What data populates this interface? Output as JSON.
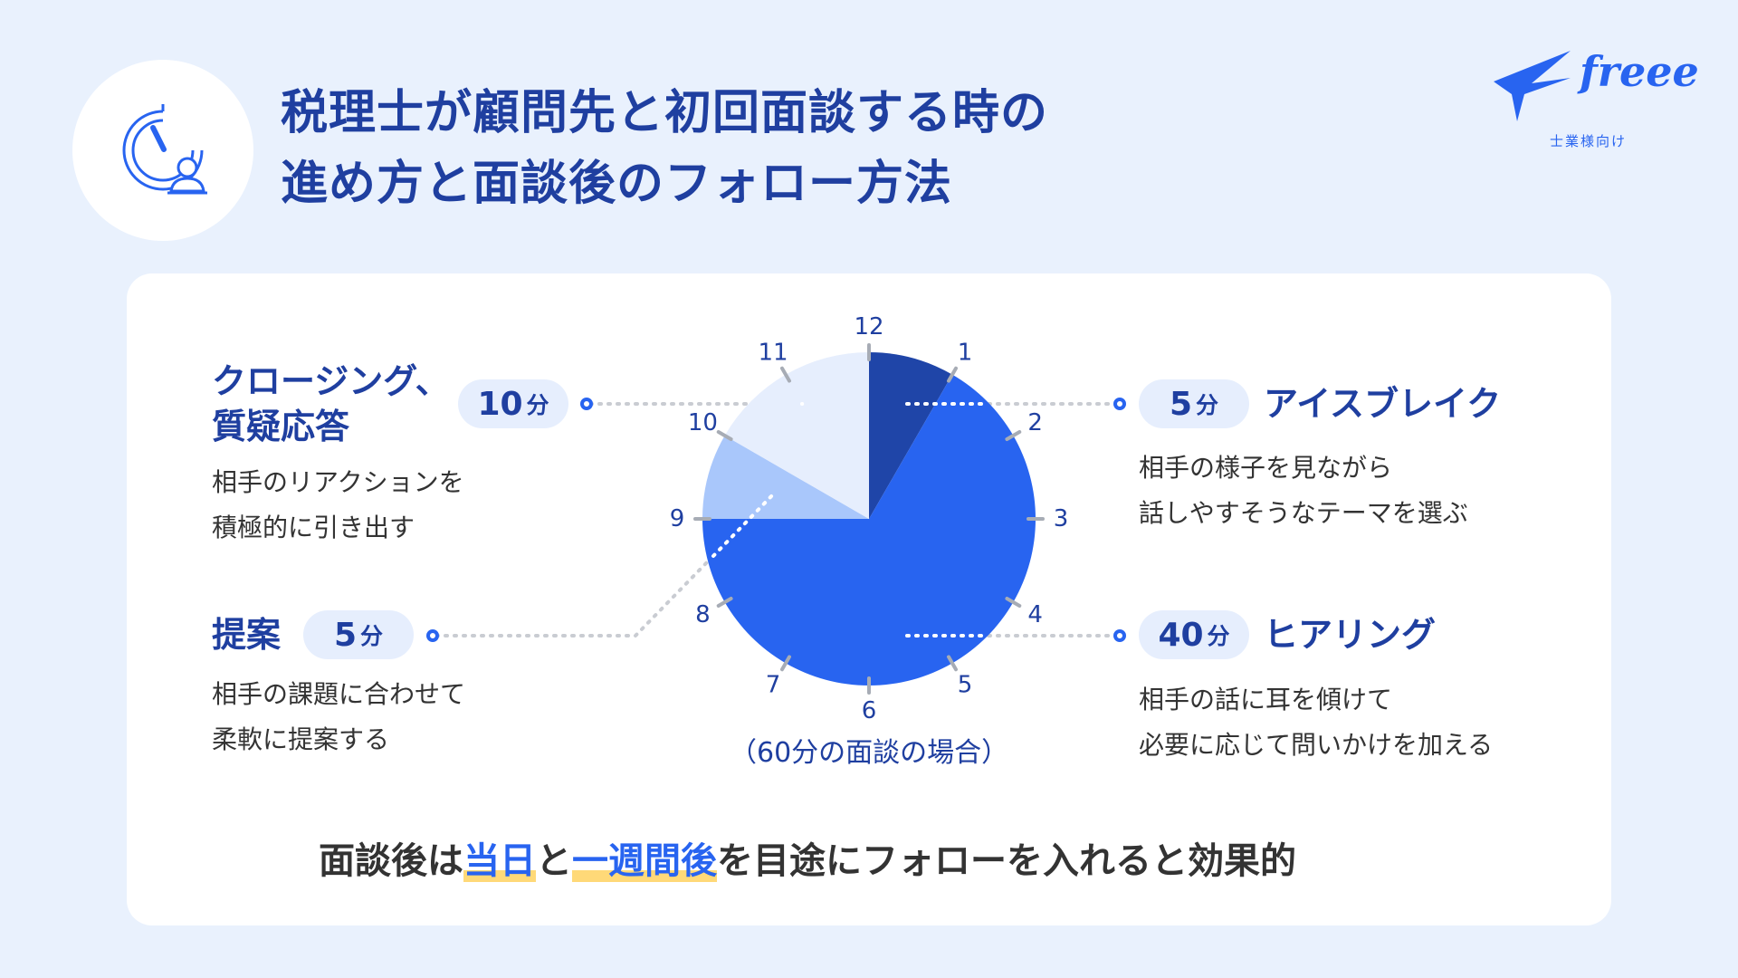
{
  "header": {
    "title_line1": "税理士が顧問先と初回面談する時の",
    "title_line2": "進め方と面談後のフォロー方法"
  },
  "logo": {
    "text": "freee",
    "subtitle": "士業様向け"
  },
  "chart_data": {
    "type": "pie",
    "total_minutes": 60,
    "clock_numbers": [
      "12",
      "1",
      "2",
      "3",
      "4",
      "5",
      "6",
      "7",
      "8",
      "9",
      "10",
      "11"
    ],
    "slices": [
      {
        "start_minute": 0,
        "minutes": 5,
        "color": "#1f45a8"
      },
      {
        "start_minute": 5,
        "minutes": 40,
        "color": "#2864f0"
      },
      {
        "start_minute": 45,
        "minutes": 5,
        "color": "#a9c7fb"
      },
      {
        "start_minute": 50,
        "minutes": 10,
        "color": "#e6eefd"
      }
    ],
    "caption": "（60分の面談の場合）"
  },
  "segments": {
    "icebreak": {
      "minutes": "5",
      "unit": "分",
      "title": "アイスブレイク",
      "desc_line1": "相手の様子を見ながら",
      "desc_line2": "話しやすそうなテーマを選ぶ"
    },
    "hearing": {
      "minutes": "40",
      "unit": "分",
      "title": "ヒアリング",
      "desc_line1": "相手の話に耳を傾けて",
      "desc_line2": "必要に応じて問いかけを加える"
    },
    "proposal": {
      "minutes": "5",
      "unit": "分",
      "title": "提案",
      "desc_line1": "相手の課題に合わせて",
      "desc_line2": "柔軟に提案する"
    },
    "closing": {
      "minutes": "10",
      "unit": "分",
      "title_line1": "クロージング、",
      "title_line2": "質疑応答",
      "desc_line1": "相手のリアクションを",
      "desc_line2": "積極的に引き出す"
    }
  },
  "bottom_message": {
    "part1": "面談後は",
    "highlight1": "当日",
    "part2": "と",
    "highlight2": "一週間後",
    "part3": "を目途にフォローを入れると効果的"
  }
}
